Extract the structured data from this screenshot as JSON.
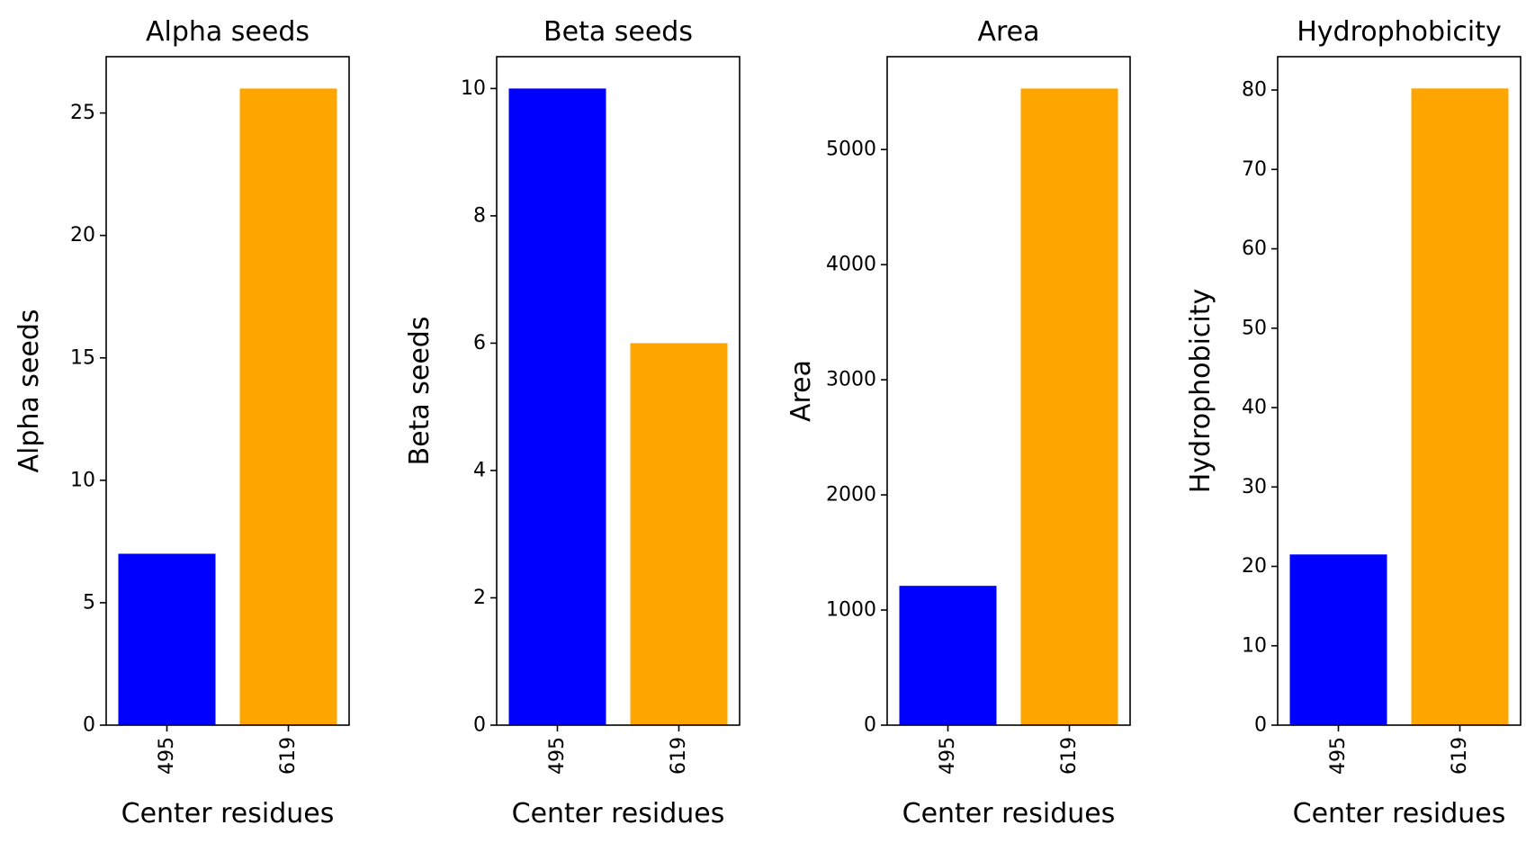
{
  "chart_data": [
    {
      "type": "bar",
      "title": "Alpha seeds",
      "xlabel": "Center residues",
      "ylabel": "Alpha seeds",
      "categories": [
        "495",
        "619"
      ],
      "values": [
        7,
        26
      ],
      "colors": [
        "#0000ff",
        "#ffa500"
      ],
      "ylim": [
        0,
        27.3
      ],
      "yticks": [
        0,
        5,
        10,
        15,
        20,
        25
      ],
      "yticklabels": [
        "0",
        "5",
        "10",
        "15",
        "20",
        "25"
      ]
    },
    {
      "type": "bar",
      "title": "Beta seeds",
      "xlabel": "Center residues",
      "ylabel": "Beta seeds",
      "categories": [
        "495",
        "619"
      ],
      "values": [
        10,
        6
      ],
      "colors": [
        "#0000ff",
        "#ffa500"
      ],
      "ylim": [
        0,
        10.5
      ],
      "yticks": [
        0,
        2,
        4,
        6,
        8,
        10
      ],
      "yticklabels": [
        "0",
        "2",
        "4",
        "6",
        "8",
        "10"
      ]
    },
    {
      "type": "bar",
      "title": "Area",
      "xlabel": "Center residues",
      "ylabel": "Area",
      "categories": [
        "495",
        "619"
      ],
      "values": [
        1210,
        5530
      ],
      "colors": [
        "#0000ff",
        "#ffa500"
      ],
      "ylim": [
        0,
        5806.5
      ],
      "yticks": [
        0,
        1000,
        2000,
        3000,
        4000,
        5000
      ],
      "yticklabels": [
        "0",
        "1000",
        "2000",
        "3000",
        "4000",
        "5000"
      ]
    },
    {
      "type": "bar",
      "title": "Hydrophobicity",
      "xlabel": "Center residues",
      "ylabel": "Hydrophobicity",
      "categories": [
        "495",
        "619"
      ],
      "values": [
        21.5,
        80.2
      ],
      "colors": [
        "#0000ff",
        "#ffa500"
      ],
      "ylim": [
        0,
        84.2
      ],
      "yticks": [
        0,
        10,
        20,
        30,
        40,
        50,
        60,
        70,
        80
      ],
      "yticklabels": [
        "0",
        "10",
        "20",
        "30",
        "40",
        "50",
        "60",
        "70",
        "80"
      ]
    }
  ]
}
